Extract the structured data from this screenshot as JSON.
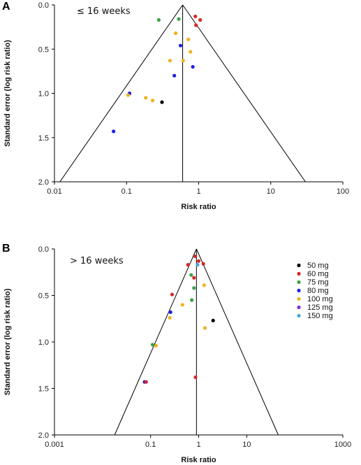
{
  "colors": {
    "50 mg": "#000000",
    "60 mg": "#d62728",
    "75 mg": "#3aa346",
    "80 mg": "#1f1fe6",
    "100 mg": "#f2b11e",
    "125 mg": "#8a2be2",
    "150 mg": "#4aa3df"
  },
  "legend": {
    "entries": [
      "50 mg",
      "60 mg",
      "75 mg",
      "80 mg",
      "100 mg",
      "125 mg",
      "150 mg"
    ]
  },
  "chart_data": [
    {
      "type": "scatter",
      "panel": "A",
      "label": "≤ 16 weeks",
      "xlabel": "Risk ratio",
      "ylabel": "Standard error (log risk ratio)",
      "xscale": "log",
      "xlim": [
        0.01,
        100
      ],
      "ylim": [
        0,
        2
      ],
      "yreversed": true,
      "x_ticks": [
        "0.01",
        "0.1",
        "1",
        "10",
        "100"
      ],
      "y_ticks": [
        "0.0",
        "0.5",
        "1.0",
        "1.5",
        "2.0"
      ],
      "pooled_rr": 0.6,
      "points": [
        {
          "rr": 0.9,
          "se": 0.13,
          "dose": "60 mg"
        },
        {
          "rr": 1.05,
          "se": 0.17,
          "dose": "60 mg"
        },
        {
          "rr": 0.92,
          "se": 0.23,
          "dose": "60 mg"
        },
        {
          "rr": 0.28,
          "se": 0.17,
          "dose": "75 mg"
        },
        {
          "rr": 0.53,
          "se": 0.16,
          "dose": "75 mg"
        },
        {
          "rr": 0.48,
          "se": 0.32,
          "dose": "100 mg"
        },
        {
          "rr": 0.72,
          "se": 0.39,
          "dose": "100 mg"
        },
        {
          "rr": 0.56,
          "se": 0.46,
          "dose": "80 mg"
        },
        {
          "rr": 0.77,
          "se": 0.53,
          "dose": "100 mg"
        },
        {
          "rr": 0.4,
          "se": 0.63,
          "dose": "100 mg"
        },
        {
          "rr": 0.61,
          "se": 0.63,
          "dose": "100 mg"
        },
        {
          "rr": 0.83,
          "se": 0.7,
          "dose": "80 mg"
        },
        {
          "rr": 0.46,
          "se": 0.8,
          "dose": "80 mg"
        },
        {
          "rr": 0.11,
          "se": 1.0,
          "dose": "80 mg"
        },
        {
          "rr": 0.105,
          "se": 1.02,
          "dose": "100 mg"
        },
        {
          "rr": 0.185,
          "se": 1.05,
          "dose": "100 mg"
        },
        {
          "rr": 0.23,
          "se": 1.08,
          "dose": "100 mg"
        },
        {
          "rr": 0.31,
          "se": 1.1,
          "dose": "50 mg"
        },
        {
          "rr": 0.066,
          "se": 1.43,
          "dose": "80 mg"
        }
      ]
    },
    {
      "type": "scatter",
      "panel": "B",
      "label": "> 16 weeks",
      "xlabel": "Risk ratio",
      "ylabel": "Standard error (log risk ratio)",
      "xscale": "log",
      "xlim": [
        0.001,
        1000
      ],
      "ylim": [
        0,
        2
      ],
      "yreversed": true,
      "x_ticks": [
        "0.001",
        "0.1",
        "1",
        "10",
        "1000"
      ],
      "y_ticks": [
        "0.0",
        "0.5",
        "1.0",
        "1.5",
        "2.0"
      ],
      "pooled_rr": 0.9,
      "points": [
        {
          "rr": 0.85,
          "se": 0.08,
          "dose": "60 mg"
        },
        {
          "rr": 1.0,
          "se": 0.13,
          "dose": "60 mg"
        },
        {
          "rr": 1.25,
          "se": 0.16,
          "dose": "60 mg"
        },
        {
          "rr": 0.6,
          "se": 0.17,
          "dose": "60 mg"
        },
        {
          "rr": 0.95,
          "se": 0.17,
          "dose": "150 mg"
        },
        {
          "rr": 0.7,
          "se": 0.28,
          "dose": "75 mg"
        },
        {
          "rr": 0.8,
          "se": 0.31,
          "dose": "60 mg"
        },
        {
          "rr": 1.3,
          "se": 0.39,
          "dose": "100 mg"
        },
        {
          "rr": 0.8,
          "se": 0.42,
          "dose": "75 mg"
        },
        {
          "rr": 0.28,
          "se": 0.49,
          "dose": "60 mg"
        },
        {
          "rr": 0.72,
          "se": 0.55,
          "dose": "75 mg"
        },
        {
          "rr": 0.46,
          "se": 0.6,
          "dose": "100 mg"
        },
        {
          "rr": 0.26,
          "se": 0.68,
          "dose": "80 mg"
        },
        {
          "rr": 0.25,
          "se": 0.74,
          "dose": "100 mg"
        },
        {
          "rr": 2.0,
          "se": 0.77,
          "dose": "50 mg"
        },
        {
          "rr": 1.35,
          "se": 0.85,
          "dose": "100 mg"
        },
        {
          "rr": 0.11,
          "se": 1.03,
          "dose": "75 mg"
        },
        {
          "rr": 0.13,
          "se": 1.04,
          "dose": "100 mg"
        },
        {
          "rr": 0.86,
          "se": 1.38,
          "dose": "60 mg"
        },
        {
          "rr": 0.075,
          "se": 1.43,
          "dose": "80 mg"
        },
        {
          "rr": 0.081,
          "se": 1.43,
          "dose": "60 mg"
        }
      ]
    }
  ]
}
